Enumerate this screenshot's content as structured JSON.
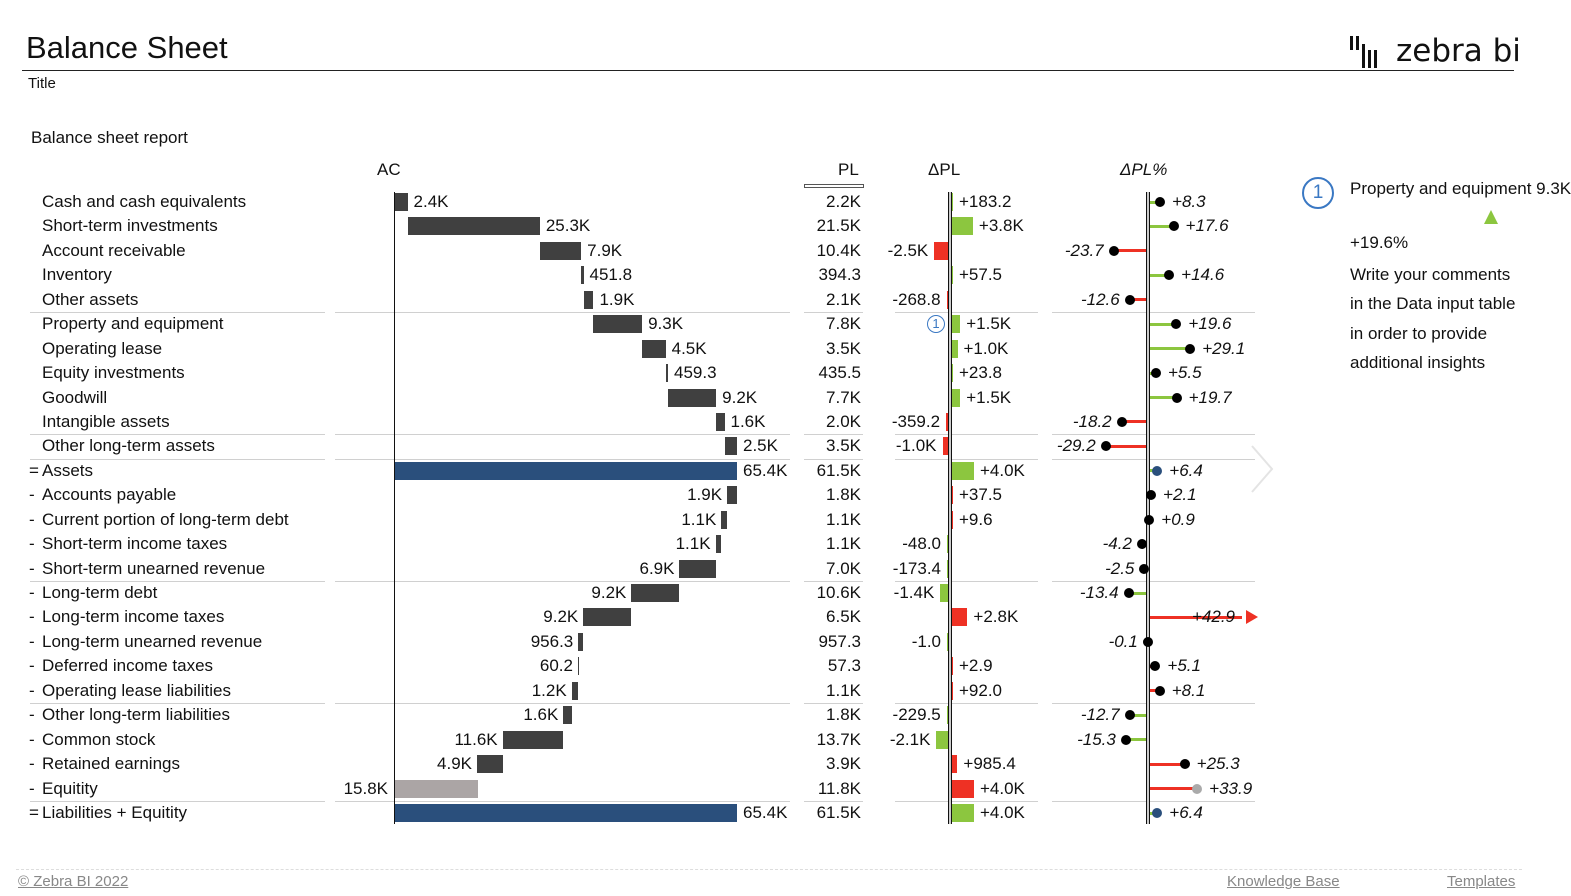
{
  "header": {
    "title": "Balance Sheet",
    "subtitle": "Title",
    "logo_text": "zebra bi"
  },
  "report_title": "Balance sheet report",
  "columns": {
    "ac": "AC",
    "pl": "PL",
    "dpl": "ΔPL",
    "dplp": "ΔPL%"
  },
  "colors": {
    "bar": "#404040",
    "total": "#2a4f7c",
    "equity": "#aba5a5",
    "good": "#8cc63f",
    "bad": "#ee3124",
    "marker": "#3a78c3"
  },
  "comment": {
    "marker": "1",
    "text_line1": "Property and equipment 9.3K",
    "trend": "up",
    "text_line2": "+19.6%",
    "body": "Write your comments in the Data input table in order to provide additional insights"
  },
  "footer": {
    "copyright": "© Zebra BI 2022",
    "links": [
      "Knowledge Base",
      "Templates"
    ]
  },
  "chart_data": {
    "type": "table",
    "units": "K",
    "rows": [
      {
        "prefix": "",
        "label": "Cash and cash equivalents",
        "ac": 2.4,
        "ac_label": "2.4K",
        "pl_label": "2.2K",
        "dpl": 0.1832,
        "dpl_label": "+183.2",
        "dplp": 8.3,
        "dplp_label": "+8.3",
        "impact": "good",
        "kind": "asset"
      },
      {
        "prefix": "",
        "label": "Short-term investments",
        "ac": 25.3,
        "ac_label": "25.3K",
        "pl_label": "21.5K",
        "dpl": 3.8,
        "dpl_label": "+3.8K",
        "dplp": 17.6,
        "dplp_label": "+17.6",
        "impact": "good",
        "kind": "asset"
      },
      {
        "prefix": "",
        "label": "Account receivable",
        "ac": 7.9,
        "ac_label": "7.9K",
        "pl_label": "10.4K",
        "dpl": -2.5,
        "dpl_label": "-2.5K",
        "dplp": -23.7,
        "dplp_label": "-23.7",
        "impact": "bad",
        "kind": "asset"
      },
      {
        "prefix": "",
        "label": "Inventory",
        "ac": 0.4518,
        "ac_label": "451.8",
        "pl_label": "394.3",
        "dpl": 0.0575,
        "dpl_label": "+57.5",
        "dplp": 14.6,
        "dplp_label": "+14.6",
        "impact": "good",
        "kind": "asset"
      },
      {
        "prefix": "",
        "label": "Other assets",
        "ac": 1.9,
        "ac_label": "1.9K",
        "pl_label": "2.1K",
        "dpl": -0.2688,
        "dpl_label": "-268.8",
        "dplp": -12.6,
        "dplp_label": "-12.6",
        "impact": "bad",
        "kind": "asset"
      },
      {
        "prefix": "",
        "label": "Property and equipment",
        "ac": 9.3,
        "ac_label": "9.3K",
        "pl_label": "7.8K",
        "dpl": 1.5,
        "dpl_label": "+1.5K",
        "dplp": 19.6,
        "dplp_label": "+19.6",
        "impact": "good",
        "kind": "asset",
        "comment": "1"
      },
      {
        "prefix": "",
        "label": "Operating lease",
        "ac": 4.5,
        "ac_label": "4.5K",
        "pl_label": "3.5K",
        "dpl": 1.0,
        "dpl_label": "+1.0K",
        "dplp": 29.1,
        "dplp_label": "+29.1",
        "impact": "good",
        "kind": "asset"
      },
      {
        "prefix": "",
        "label": "Equity investments",
        "ac": 0.4593,
        "ac_label": "459.3",
        "pl_label": "435.5",
        "dpl": 0.0238,
        "dpl_label": "+23.8",
        "dplp": 5.5,
        "dplp_label": "+5.5",
        "impact": "good",
        "kind": "asset"
      },
      {
        "prefix": "",
        "label": "Goodwill",
        "ac": 9.2,
        "ac_label": "9.2K",
        "pl_label": "7.7K",
        "dpl": 1.5,
        "dpl_label": "+1.5K",
        "dplp": 19.7,
        "dplp_label": "+19.7",
        "impact": "good",
        "kind": "asset"
      },
      {
        "prefix": "",
        "label": "Intangible assets",
        "ac": 1.6,
        "ac_label": "1.6K",
        "pl_label": "2.0K",
        "dpl": -0.3592,
        "dpl_label": "-359.2",
        "dplp": -18.2,
        "dplp_label": "-18.2",
        "impact": "bad",
        "kind": "asset"
      },
      {
        "prefix": "",
        "label": "Other long-term assets",
        "ac": 2.5,
        "ac_label": "2.5K",
        "pl_label": "3.5K",
        "dpl": -1.0,
        "dpl_label": "-1.0K",
        "dplp": -29.2,
        "dplp_label": "-29.2",
        "impact": "bad",
        "kind": "asset"
      },
      {
        "prefix": "=",
        "label": "Assets",
        "ac": 65.4,
        "ac_label": "65.4K",
        "pl_label": "61.5K",
        "dpl": 4.0,
        "dpl_label": "+4.0K",
        "dplp": 6.4,
        "dplp_label": "+6.4",
        "impact": "good",
        "kind": "total"
      },
      {
        "prefix": "-",
        "label": "Accounts payable",
        "ac": 1.9,
        "ac_label": "1.9K",
        "pl_label": "1.8K",
        "dpl": 0.0375,
        "dpl_label": "+37.5",
        "dplp": 2.1,
        "dplp_label": "+2.1",
        "impact": "bad",
        "kind": "liability"
      },
      {
        "prefix": "-",
        "label": "Current portion of long-term debt",
        "ac": 1.1,
        "ac_label": "1.1K",
        "pl_label": "1.1K",
        "dpl": 0.0096,
        "dpl_label": "+9.6",
        "dplp": 0.9,
        "dplp_label": "+0.9",
        "impact": "bad",
        "kind": "liability"
      },
      {
        "prefix": "-",
        "label": "Short-term income taxes",
        "ac": 1.1,
        "ac_label": "1.1K",
        "pl_label": "1.1K",
        "dpl": -0.048,
        "dpl_label": "-48.0",
        "dplp": -4.2,
        "dplp_label": "-4.2",
        "impact": "good",
        "kind": "liability"
      },
      {
        "prefix": "-",
        "label": "Short-term unearned revenue",
        "ac": 6.9,
        "ac_label": "6.9K",
        "pl_label": "7.0K",
        "dpl": -0.1734,
        "dpl_label": "-173.4",
        "dplp": -2.5,
        "dplp_label": "-2.5",
        "impact": "good",
        "kind": "liability"
      },
      {
        "prefix": "-",
        "label": "Long-term debt",
        "ac": 9.2,
        "ac_label": "9.2K",
        "pl_label": "10.6K",
        "dpl": -1.4,
        "dpl_label": "-1.4K",
        "dplp": -13.4,
        "dplp_label": "-13.4",
        "impact": "good",
        "kind": "liability"
      },
      {
        "prefix": "-",
        "label": "Long-term income taxes",
        "ac": 9.2,
        "ac_label": "9.2K",
        "pl_label": "6.5K",
        "dpl": 2.8,
        "dpl_label": "+2.8K",
        "dplp": 42.9,
        "dplp_label": "+42.9",
        "impact": "bad",
        "kind": "liability"
      },
      {
        "prefix": "-",
        "label": "Long-term unearned revenue",
        "ac": 0.9563,
        "ac_label": "956.3",
        "pl_label": "957.3",
        "dpl": -0.001,
        "dpl_label": "-1.0",
        "dplp": -0.1,
        "dplp_label": "-0.1",
        "impact": "good",
        "kind": "liability"
      },
      {
        "prefix": "-",
        "label": "Deferred income taxes",
        "ac": 0.0602,
        "ac_label": "60.2",
        "pl_label": "57.3",
        "dpl": 0.0029,
        "dpl_label": "+2.9",
        "dplp": 5.1,
        "dplp_label": "+5.1",
        "impact": "bad",
        "kind": "liability"
      },
      {
        "prefix": "-",
        "label": "Operating lease liabilities",
        "ac": 1.2,
        "ac_label": "1.2K",
        "pl_label": "1.1K",
        "dpl": 0.092,
        "dpl_label": "+92.0",
        "dplp": 8.1,
        "dplp_label": "+8.1",
        "impact": "bad",
        "kind": "liability"
      },
      {
        "prefix": "-",
        "label": "Other long-term liabilities",
        "ac": 1.6,
        "ac_label": "1.6K",
        "pl_label": "1.8K",
        "dpl": -0.2295,
        "dpl_label": "-229.5",
        "dplp": -12.7,
        "dplp_label": "-12.7",
        "impact": "good",
        "kind": "liability"
      },
      {
        "prefix": "-",
        "label": "Common stock",
        "ac": 11.6,
        "ac_label": "11.6K",
        "pl_label": "13.7K",
        "dpl": -2.1,
        "dpl_label": "-2.1K",
        "dplp": -15.3,
        "dplp_label": "-15.3",
        "impact": "good",
        "kind": "liability"
      },
      {
        "prefix": "-",
        "label": "Retained earnings",
        "ac": 4.9,
        "ac_label": "4.9K",
        "pl_label": "3.9K",
        "dpl": 0.9854,
        "dpl_label": "+985.4",
        "dplp": 25.3,
        "dplp_label": "+25.3",
        "impact": "bad",
        "kind": "liability"
      },
      {
        "prefix": "-",
        "label": "Equitity",
        "ac": 15.8,
        "ac_label": "15.8K",
        "pl_label": "11.8K",
        "dpl": 4.0,
        "dpl_label": "+4.0K",
        "dplp": 33.9,
        "dplp_label": "+33.9",
        "impact": "bad",
        "kind": "equity"
      },
      {
        "prefix": "=",
        "label": "Liabilities + Equitity",
        "ac": 65.4,
        "ac_label": "65.4K",
        "pl_label": "61.5K",
        "dpl": 4.0,
        "dpl_label": "+4.0K",
        "dplp": 6.4,
        "dplp_label": "+6.4",
        "impact": "good",
        "kind": "total"
      }
    ]
  }
}
